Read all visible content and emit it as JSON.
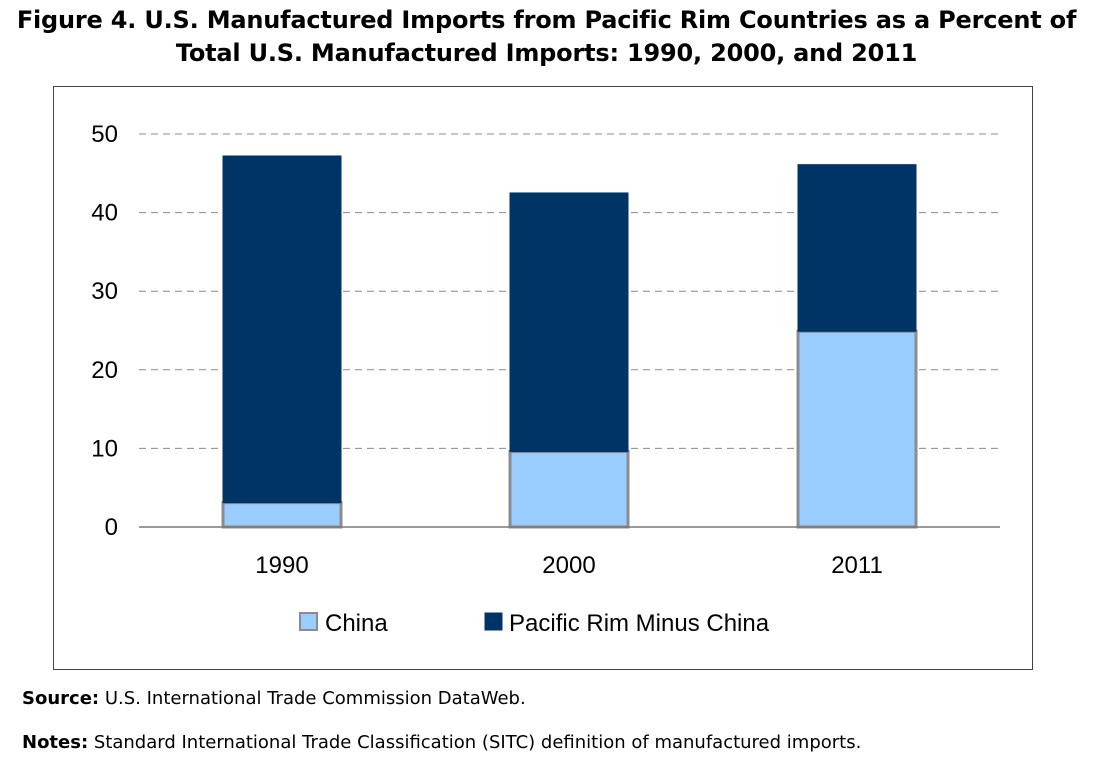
{
  "figure": {
    "title_line1": "Figure 4. U.S. Manufactured Imports from Pacific Rim Countries as a Percent of",
    "title_line2": "Total U.S. Manufactured Imports: 1990, 2000, and 2011"
  },
  "footer": {
    "source_label": "Source:",
    "source_text": " U.S. International Trade Commission DataWeb.",
    "notes_label": "Notes:",
    "notes_text": " Standard International Trade Classification (SITC) definition of manufactured imports."
  },
  "colors": {
    "china": "#99CCFF",
    "china_border": "#8C8C8C",
    "pacific_rim_minus_china": "#003366",
    "grid": "#8C8C8C",
    "axis": "#8C8C8C"
  },
  "chart_data": {
    "type": "bar",
    "stacked": true,
    "categories": [
      "1990",
      "2000",
      "2011"
    ],
    "series": [
      {
        "name": "China",
        "values": [
          3.1,
          9.6,
          24.9
        ]
      },
      {
        "name": "Pacific Rim Minus China",
        "values": [
          44.1,
          32.9,
          21.2
        ]
      }
    ],
    "ylim": [
      0,
      50
    ],
    "yticks": [
      "0",
      "10",
      "20",
      "30",
      "40",
      "50"
    ],
    "grid": true,
    "legend": "bottom-center"
  }
}
